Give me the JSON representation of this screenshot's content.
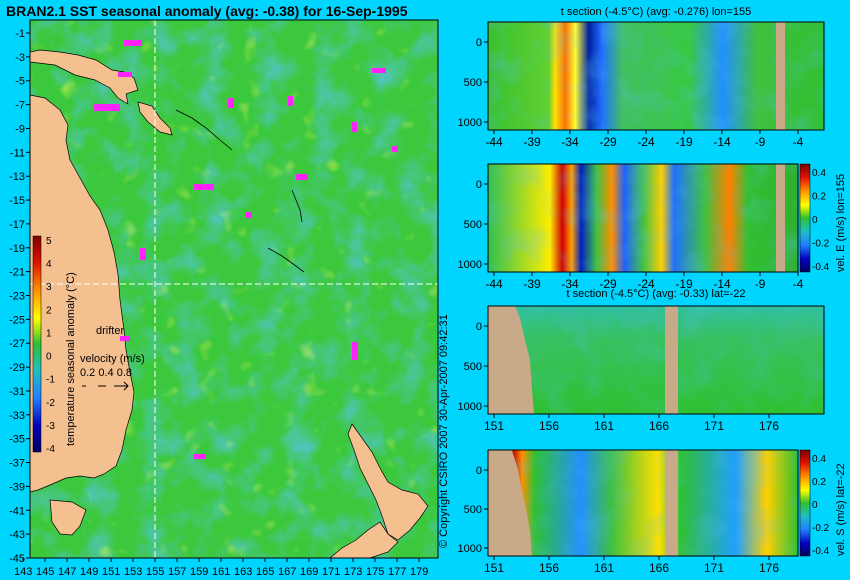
{
  "map": {
    "title": "BRAN2.1 SST seasonal anomaly (avg: -0.38) for 16-Sep-1995",
    "lat_ticks": [
      "-1",
      "-3",
      "-5",
      "-7",
      "-9",
      "-11",
      "-13",
      "-15",
      "-17",
      "-19",
      "-21",
      "-23",
      "-25",
      "-27",
      "-29",
      "-31",
      "-33",
      "-35",
      "-37",
      "-39",
      "-41",
      "-43",
      "-45"
    ],
    "lon_ticks": [
      "143",
      "145",
      "147",
      "149",
      "151",
      "153",
      "155",
      "157",
      "159",
      "161",
      "163",
      "165",
      "167",
      "169",
      "171",
      "173",
      "175",
      "177",
      "179"
    ],
    "colorbar_ticks": [
      "5",
      "4",
      "3",
      "2",
      "1",
      "0",
      "-1",
      "-2",
      "-3",
      "-4"
    ],
    "colorbar_label": "temperature seasonal anomaly (°C)",
    "drifter_label": "drifter",
    "velocity_label": "velocity (m/s)",
    "velocity_scale": "0.2 0.4 0.8",
    "colors": {
      "land": "#f5c090",
      "ocean": "#30c030",
      "background": "#00d5ff",
      "drifter": "#ff22ff",
      "guide": "#ffffff"
    }
  },
  "copyright": "© Copyright CSIRO 2007   30-Apr-2007 09:42:31",
  "panels": [
    {
      "title": "t section (-4.5°C) (avg: -0.276) lon=155",
      "y_ticks": [
        "0",
        "500",
        "1000"
      ],
      "x_ticks": [
        "-44",
        "-39",
        "-34",
        "-29",
        "-24",
        "-19",
        "-14",
        "-9",
        "-4"
      ],
      "side_label": ""
    },
    {
      "title": "",
      "y_ticks": [
        "0",
        "500",
        "1000"
      ],
      "x_ticks": [
        "-44",
        "-39",
        "-34",
        "-29",
        "-24",
        "-19",
        "-14",
        "-9",
        "-4"
      ],
      "side_label": "vel. E (m/s) lon=155",
      "cbar_ticks": [
        "0.4",
        "0.2",
        "0",
        "-0.2",
        "-0.4"
      ]
    },
    {
      "title": "t section (-4.5°C) (avg: -0.33) lat=-22",
      "y_ticks": [
        "0",
        "500",
        "1000"
      ],
      "x_ticks": [
        "151",
        "156",
        "161",
        "166",
        "171",
        "176"
      ],
      "side_label": ""
    },
    {
      "title": "",
      "y_ticks": [
        "0",
        "500",
        "1000"
      ],
      "x_ticks": [
        "151",
        "156",
        "161",
        "166",
        "171",
        "176"
      ],
      "side_label": "vel. S (m/s) lat=-22",
      "cbar_ticks": [
        "0.4",
        "0.2",
        "0",
        "-0.2",
        "-0.4"
      ]
    }
  ]
}
